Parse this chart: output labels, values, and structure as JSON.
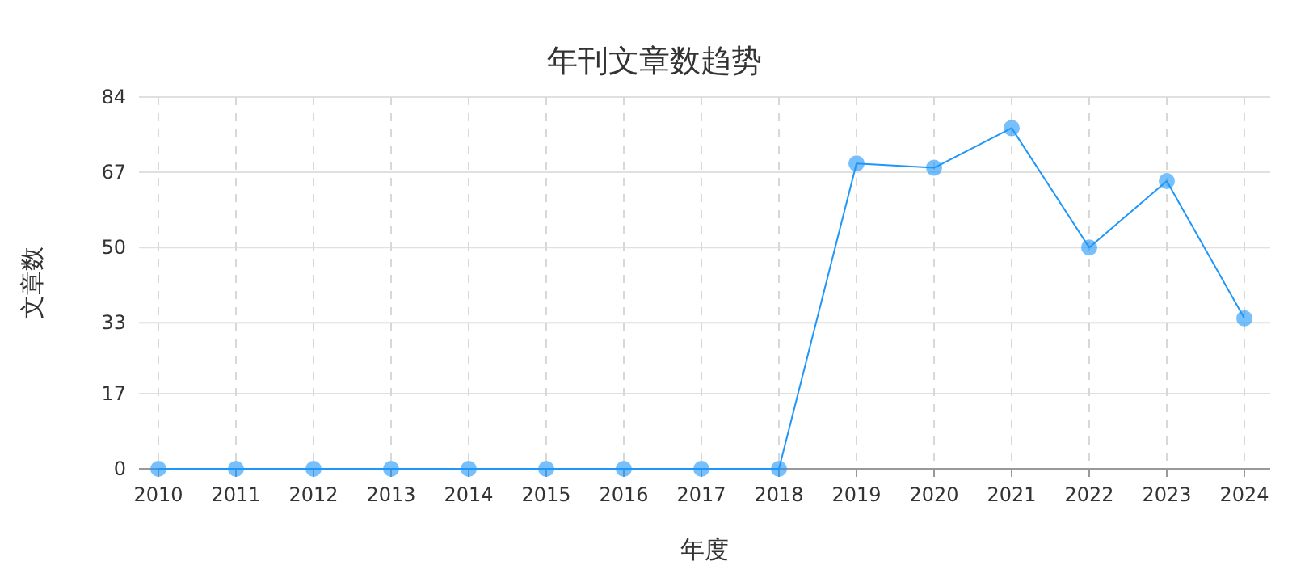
{
  "chart_data": {
    "type": "line",
    "title": "年刊文章数趋势",
    "xlabel": "年度",
    "ylabel": "文章数",
    "categories": [
      "2010",
      "2011",
      "2012",
      "2013",
      "2014",
      "2015",
      "2016",
      "2017",
      "2018",
      "2019",
      "2020",
      "2021",
      "2022",
      "2023",
      "2024"
    ],
    "series": [
      {
        "color": "#1e96fa",
        "values": [
          0,
          0,
          0,
          0,
          0,
          0,
          0,
          0,
          0,
          69,
          68,
          77,
          50,
          65,
          34
        ]
      }
    ],
    "ylim": [
      0,
      84
    ],
    "yticks": [
      0,
      17,
      33,
      50,
      67,
      84
    ],
    "grid": true,
    "marker": "circle",
    "line_style": "solid"
  }
}
